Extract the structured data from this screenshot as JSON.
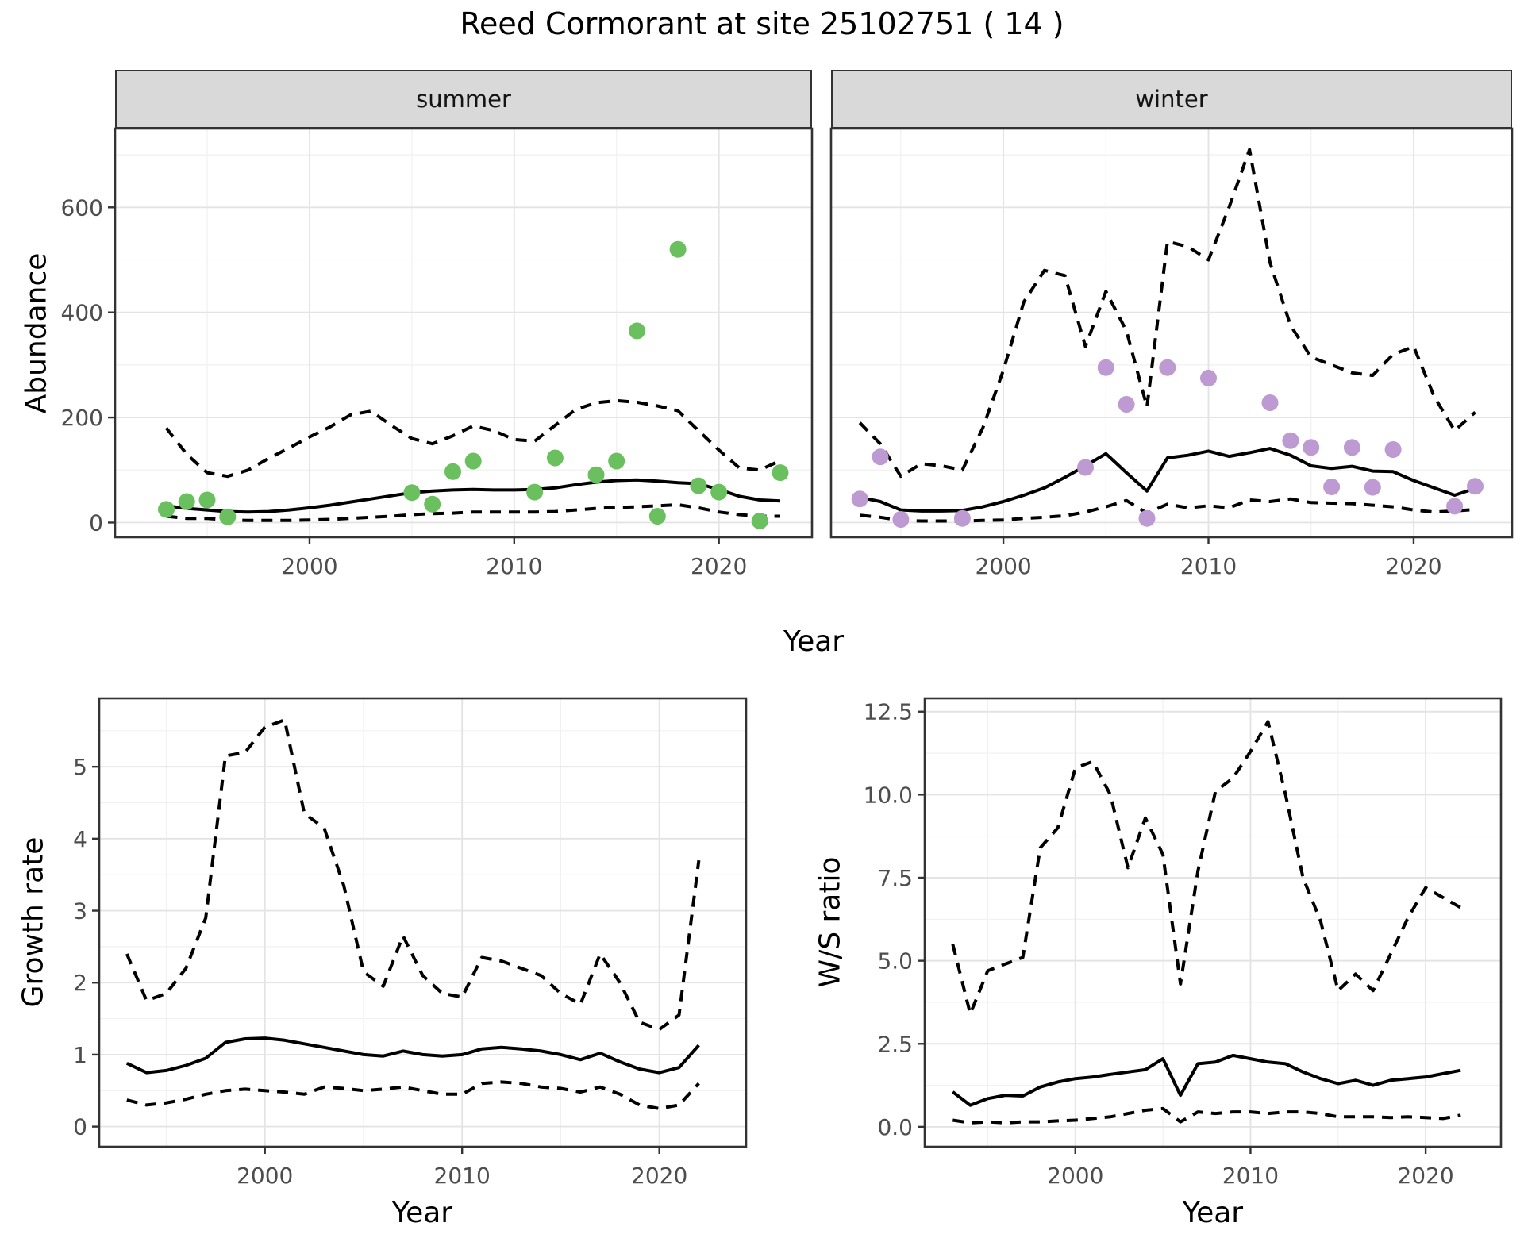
{
  "title": "Reed Cormorant at site 25102751 ( 14 )",
  "labels": {
    "y_top": "Abundance",
    "x_top": "Year",
    "y_growth": "Growth rate",
    "x_growth": "Year",
    "y_ws": "W/S ratio",
    "x_ws": "Year"
  },
  "facets": {
    "summer": "summer",
    "winter": "winter"
  },
  "colors": {
    "summer_point": "#6abf5f",
    "winter_point": "#bd9ad1",
    "line": "#000000",
    "strip_bg": "#d9d9d9",
    "panel_border": "#333333",
    "grid_major": "#e4e4e4",
    "grid_minor": "#f1f1f1",
    "tick_mark": "#333333",
    "tick_label": "#4d4d4d"
  },
  "chart_data": {
    "type": "line",
    "title": "Reed Cormorant at site 25102751 ( 14 )",
    "legend": "none",
    "grid": "on",
    "panels": [
      {
        "id": "summer",
        "facet": "summer",
        "xlabel": "Year",
        "ylabel": "Abundance",
        "xlim": [
          1990.5,
          2024.55
        ],
        "ylim": [
          -28,
          750
        ],
        "xticks": [
          2000,
          2010,
          2020
        ],
        "xtick_labels": [
          "2000",
          "2010",
          "2020"
        ],
        "xminor": [
          1995,
          2005,
          2015
        ],
        "yticks": [
          0,
          200,
          400,
          600
        ],
        "ytick_labels": [
          "0",
          "200",
          "400",
          "600"
        ],
        "yminor": [
          100,
          300,
          500,
          700
        ],
        "show_ytick_labels": true,
        "years": [
          1993,
          1994,
          1995,
          1996,
          1997,
          1998,
          1999,
          2000,
          2001,
          2002,
          2003,
          2004,
          2005,
          2006,
          2007,
          2008,
          2009,
          2010,
          2011,
          2012,
          2013,
          2014,
          2015,
          2016,
          2017,
          2018,
          2019,
          2020,
          2021,
          2022,
          2023
        ],
        "fit": [
          32,
          27,
          24,
          21,
          20,
          21,
          24,
          28,
          33,
          39,
          45,
          51,
          57,
          60,
          62,
          63,
          62,
          62,
          63,
          66,
          72,
          77,
          80,
          81,
          79,
          76,
          74,
          63,
          50,
          43,
          41
        ],
        "upper": [
          180,
          130,
          95,
          88,
          100,
          122,
          142,
          163,
          182,
          205,
          212,
          185,
          160,
          150,
          165,
          184,
          175,
          158,
          155,
          185,
          215,
          228,
          232,
          229,
          222,
          213,
          175,
          138,
          104,
          100,
          118
        ],
        "lower": [
          12,
          8,
          8,
          5,
          4,
          4,
          4,
          5,
          6,
          8,
          10,
          12,
          15,
          17,
          18,
          20,
          20,
          20,
          20,
          21,
          24,
          27,
          29,
          30,
          32,
          34,
          28,
          20,
          15,
          12,
          12
        ],
        "points": {
          "color_key": "summer_point",
          "years": [
            1993,
            1994,
            1995,
            1996,
            2005,
            2006,
            2007,
            2008,
            2011,
            2012,
            2014,
            2015,
            2016,
            2017,
            2018,
            2019,
            2020,
            2022,
            2023
          ],
          "values": [
            25,
            40,
            43,
            11,
            57,
            35,
            97,
            117,
            58,
            123,
            91,
            117,
            365,
            12,
            520,
            70,
            58,
            3,
            95
          ]
        }
      },
      {
        "id": "winter",
        "facet": "winter",
        "xlabel": "Year",
        "ylabel": "Abundance",
        "xlim": [
          1991.6,
          2024.8
        ],
        "ylim": [
          -28,
          750
        ],
        "xticks": [
          2000,
          2010,
          2020
        ],
        "xtick_labels": [
          "2000",
          "2010",
          "2020"
        ],
        "xminor": [
          1995,
          2005,
          2015
        ],
        "yticks": [
          0,
          200,
          400,
          600
        ],
        "ytick_labels": [
          "0",
          "200",
          "400",
          "600"
        ],
        "yminor": [
          100,
          300,
          500,
          700
        ],
        "show_ytick_labels": false,
        "years": [
          1993,
          1994,
          1995,
          1996,
          1997,
          1998,
          1999,
          2000,
          2001,
          2002,
          2003,
          2004,
          2005,
          2006,
          2007,
          2008,
          2009,
          2010,
          2011,
          2012,
          2013,
          2014,
          2015,
          2016,
          2017,
          2018,
          2019,
          2020,
          2021,
          2022,
          2023
        ],
        "fit": [
          48,
          40,
          24,
          22,
          22,
          23,
          30,
          40,
          52,
          66,
          86,
          108,
          131,
          95,
          60,
          123,
          128,
          136,
          126,
          133,
          141,
          128,
          108,
          103,
          107,
          98,
          97,
          80,
          66,
          52,
          65
        ],
        "upper": [
          190,
          150,
          88,
          112,
          108,
          100,
          180,
          290,
          420,
          480,
          470,
          335,
          440,
          365,
          220,
          535,
          525,
          500,
          600,
          710,
          495,
          375,
          315,
          300,
          285,
          280,
          320,
          335,
          240,
          175,
          210
        ],
        "lower": [
          14,
          10,
          4,
          3,
          3,
          3,
          4,
          5,
          8,
          10,
          13,
          20,
          30,
          42,
          18,
          35,
          28,
          32,
          28,
          43,
          40,
          45,
          38,
          37,
          36,
          33,
          30,
          24,
          20,
          22,
          25
        ],
        "points": {
          "color_key": "winter_point",
          "years": [
            1993,
            1994,
            1995,
            1998,
            2004,
            2005,
            2006,
            2007,
            2008,
            2010,
            2013,
            2014,
            2015,
            2016,
            2017,
            2018,
            2019,
            2022,
            2023
          ],
          "values": [
            45,
            125,
            6,
            8,
            105,
            295,
            225,
            8,
            295,
            275,
            228,
            156,
            143,
            68,
            143,
            67,
            139,
            31,
            69
          ]
        }
      },
      {
        "id": "growth",
        "facet": null,
        "xlabel": "Year",
        "ylabel": "Growth rate",
        "xlim": [
          1991.6,
          2024.4
        ],
        "ylim": [
          -0.28,
          5.95
        ],
        "xticks": [
          2000,
          2010,
          2020
        ],
        "xtick_labels": [
          "2000",
          "2010",
          "2020"
        ],
        "xminor": [
          1995,
          2005,
          2015
        ],
        "yticks": [
          0,
          1,
          2,
          3,
          4,
          5
        ],
        "ytick_labels": [
          "0",
          "1",
          "2",
          "3",
          "4",
          "5"
        ],
        "yminor": [
          0.5,
          1.5,
          2.5,
          3.5,
          4.5,
          5.5
        ],
        "show_ytick_labels": true,
        "years": [
          1993,
          1994,
          1995,
          1996,
          1997,
          1998,
          1999,
          2000,
          2001,
          2002,
          2003,
          2004,
          2005,
          2006,
          2007,
          2008,
          2009,
          2010,
          2011,
          2012,
          2013,
          2014,
          2015,
          2016,
          2017,
          2018,
          2019,
          2020,
          2021,
          2022
        ],
        "fit": [
          0.88,
          0.75,
          0.78,
          0.85,
          0.95,
          1.17,
          1.22,
          1.23,
          1.2,
          1.15,
          1.1,
          1.05,
          1.0,
          0.98,
          1.05,
          1.0,
          0.98,
          1.0,
          1.08,
          1.1,
          1.08,
          1.05,
          1.0,
          0.93,
          1.02,
          0.9,
          0.8,
          0.75,
          0.82,
          1.13
        ],
        "upper": [
          2.4,
          1.75,
          1.85,
          2.2,
          2.9,
          5.15,
          5.2,
          5.55,
          5.65,
          4.35,
          4.15,
          3.35,
          2.15,
          1.95,
          2.65,
          2.1,
          1.85,
          1.8,
          2.35,
          2.3,
          2.2,
          2.1,
          1.85,
          1.7,
          2.4,
          2.0,
          1.45,
          1.35,
          1.55,
          3.7
        ],
        "lower": [
          0.37,
          0.3,
          0.33,
          0.38,
          0.45,
          0.5,
          0.52,
          0.5,
          0.48,
          0.45,
          0.55,
          0.53,
          0.5,
          0.52,
          0.55,
          0.5,
          0.45,
          0.45,
          0.6,
          0.62,
          0.6,
          0.55,
          0.53,
          0.48,
          0.55,
          0.45,
          0.3,
          0.25,
          0.3,
          0.6
        ],
        "points": null
      },
      {
        "id": "ws",
        "facet": null,
        "xlabel": "Year",
        "ylabel": "W/S ratio",
        "xlim": [
          1991.4,
          2024.3
        ],
        "ylim": [
          -0.6,
          12.9
        ],
        "xticks": [
          2000,
          2010,
          2020
        ],
        "xtick_labels": [
          "2000",
          "2010",
          "2020"
        ],
        "xminor": [
          1995,
          2005,
          2015
        ],
        "yticks": [
          0,
          2.5,
          5,
          7.5,
          10,
          12.5
        ],
        "ytick_labels": [
          "0.0",
          "2.5",
          "5.0",
          "7.5",
          "10.0",
          "12.5"
        ],
        "yminor": [
          1.25,
          3.75,
          6.25,
          8.75,
          11.25
        ],
        "show_ytick_labels": true,
        "years": [
          1993,
          1994,
          1995,
          1996,
          1997,
          1998,
          1999,
          2000,
          2001,
          2002,
          2003,
          2004,
          2005,
          2006,
          2007,
          2008,
          2009,
          2010,
          2011,
          2012,
          2013,
          2014,
          2015,
          2016,
          2017,
          2018,
          2019,
          2020,
          2021,
          2022
        ],
        "fit": [
          1.05,
          0.65,
          0.85,
          0.95,
          0.93,
          1.2,
          1.35,
          1.45,
          1.5,
          1.58,
          1.65,
          1.72,
          2.05,
          0.95,
          1.9,
          1.95,
          2.15,
          2.05,
          1.95,
          1.9,
          1.65,
          1.45,
          1.3,
          1.4,
          1.25,
          1.4,
          1.45,
          1.5,
          1.6,
          1.7
        ],
        "upper": [
          5.5,
          3.4,
          4.7,
          4.9,
          5.1,
          8.4,
          9.0,
          10.8,
          11.0,
          10.0,
          7.8,
          9.3,
          8.2,
          4.3,
          7.7,
          10.1,
          10.5,
          11.3,
          12.2,
          10.0,
          7.5,
          6.2,
          4.1,
          4.6,
          4.1,
          5.2,
          6.3,
          7.2,
          6.9,
          6.6
        ],
        "lower": [
          0.2,
          0.12,
          0.15,
          0.12,
          0.15,
          0.15,
          0.18,
          0.2,
          0.25,
          0.3,
          0.4,
          0.5,
          0.55,
          0.15,
          0.45,
          0.4,
          0.45,
          0.45,
          0.4,
          0.45,
          0.45,
          0.4,
          0.3,
          0.3,
          0.3,
          0.28,
          0.3,
          0.28,
          0.25,
          0.35
        ]
      }
    ]
  }
}
